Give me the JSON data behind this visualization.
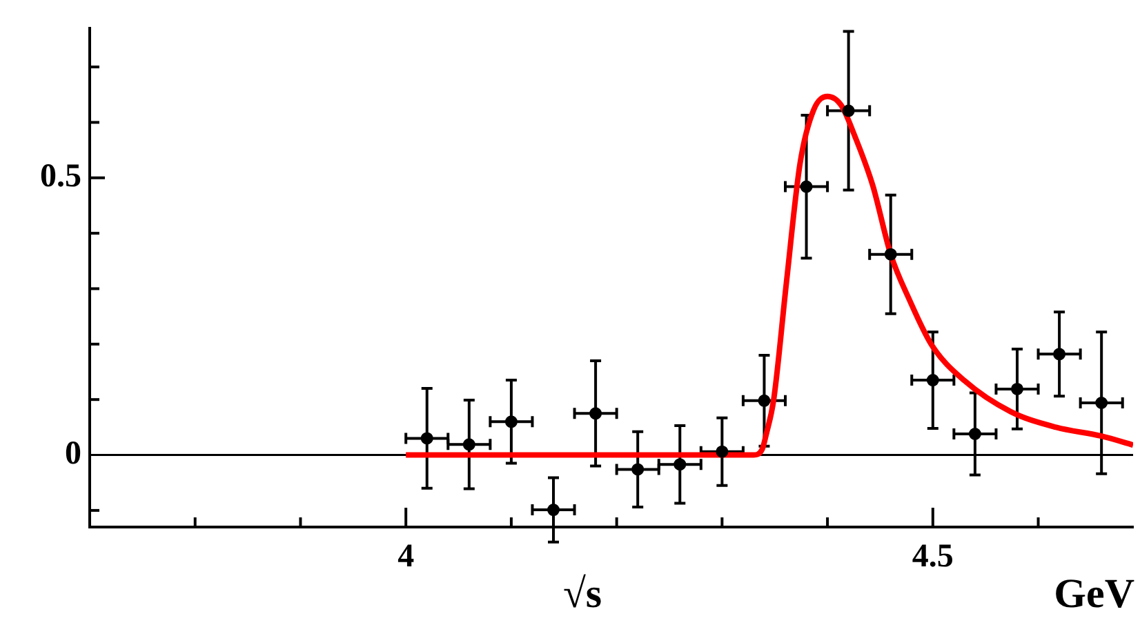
{
  "chart_data": {
    "type": "scatter",
    "xlabel": "√s",
    "annotations": [
      "GeV"
    ],
    "xlim": [
      3.7,
      4.69
    ],
    "ylim": [
      -0.13,
      0.77
    ],
    "xticks": [
      {
        "value": 3.8,
        "label": null
      },
      {
        "value": 3.9,
        "label": null
      },
      4,
      {
        "value": 4.1,
        "label": null
      },
      {
        "value": 4.2,
        "label": null
      },
      {
        "value": 4.3,
        "label": null
      },
      {
        "value": 4.4,
        "label": null
      },
      4.5,
      {
        "value": 4.6,
        "label": null
      }
    ],
    "yticks": [
      {
        "value": -0.1,
        "label": null
      },
      0,
      {
        "value": 0.1,
        "label": null
      },
      {
        "value": 0.2,
        "label": null
      },
      {
        "value": 0.3,
        "label": null
      },
      {
        "value": 0.4,
        "label": null
      },
      0.5,
      {
        "value": 0.6,
        "label": null
      },
      {
        "value": 0.7,
        "label": null
      }
    ],
    "grid": false,
    "legend": false,
    "ref_lines": [
      {
        "axis": "y",
        "value": 0,
        "color": "#000000"
      }
    ],
    "series": [
      {
        "type": "scatter",
        "color": "#000000",
        "marker": "circle",
        "x": [
          4.02,
          4.06,
          4.1,
          4.14,
          4.18,
          4.22,
          4.26,
          4.3,
          4.34,
          4.38,
          4.42,
          4.46,
          4.5,
          4.54,
          4.58,
          4.62,
          4.66
        ],
        "values": [
          0.03,
          0.019,
          0.06,
          -0.099,
          0.075,
          -0.026,
          -0.017,
          0.006,
          0.098,
          0.484,
          0.621,
          0.362,
          0.135,
          0.038,
          0.119,
          0.182,
          0.094
        ],
        "errors": [
          0.09,
          0.08,
          0.075,
          0.058,
          0.095,
          0.068,
          0.07,
          0.061,
          0.082,
          0.129,
          0.143,
          0.107,
          0.087,
          0.074,
          0.072,
          0.076,
          0.128
        ],
        "xerrors": [
          0.02,
          0.02,
          0.02,
          0.02,
          0.02,
          0.02,
          0.02,
          0.02,
          0.02,
          0.02,
          0.02,
          0.02,
          0.02,
          0.02,
          0.02,
          0.02,
          0.02
        ]
      },
      {
        "type": "line",
        "color": "#ff0000",
        "marker": "none",
        "x": [
          4.0,
          4.33,
          4.338,
          4.342,
          4.349,
          4.361,
          4.374,
          4.387,
          4.4,
          4.413,
          4.426,
          4.443,
          4.46,
          4.478,
          4.499,
          4.53,
          4.574,
          4.617,
          4.66,
          4.69
        ],
        "values": [
          0,
          0,
          0.01,
          0.038,
          0.1,
          0.31,
          0.526,
          0.623,
          0.647,
          0.631,
          0.575,
          0.486,
          0.362,
          0.279,
          0.198,
          0.134,
          0.078,
          0.05,
          0.034,
          0.018
        ]
      }
    ]
  }
}
